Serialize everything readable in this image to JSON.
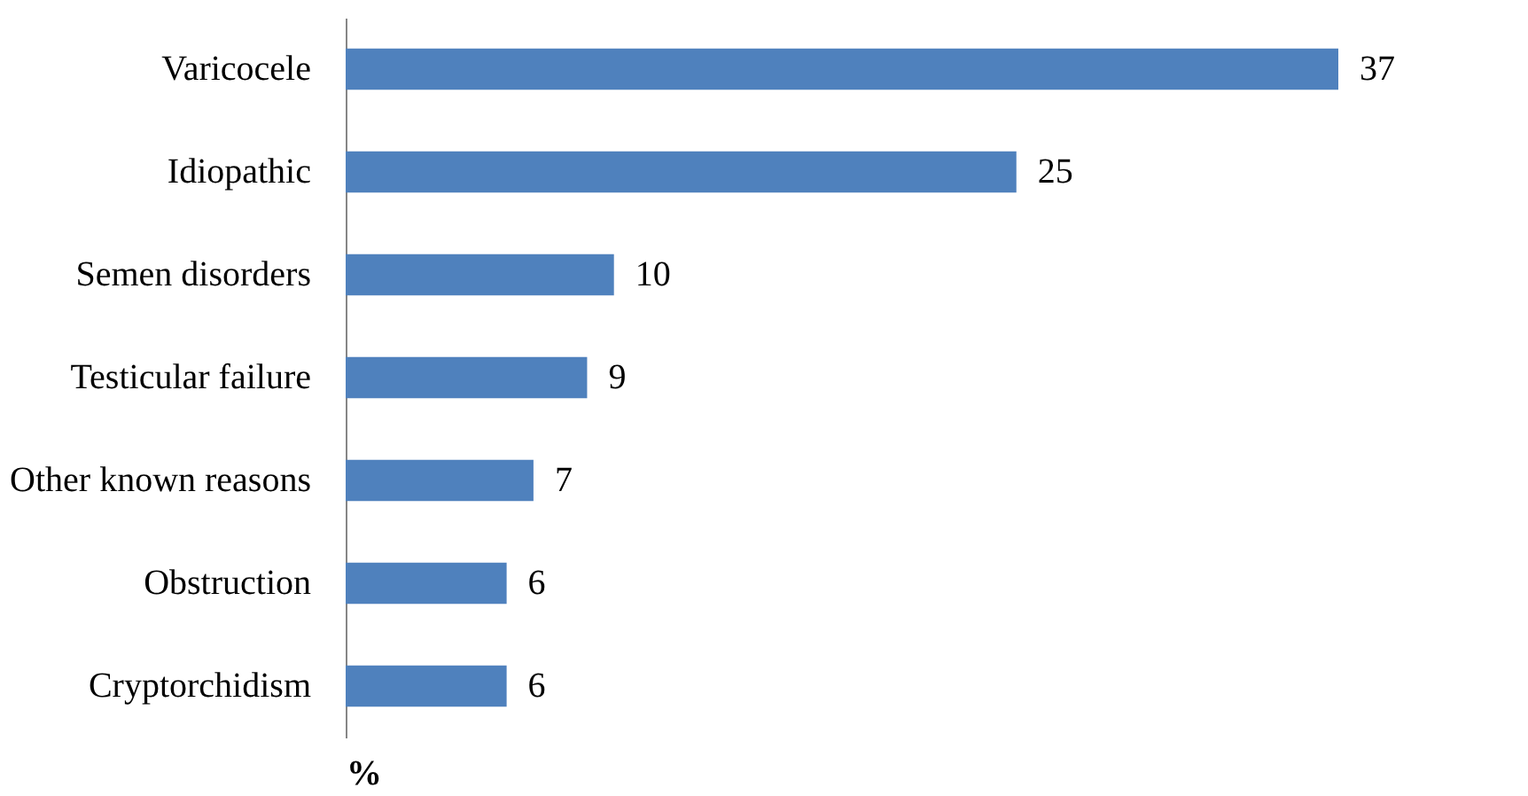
{
  "chart_data": {
    "type": "bar",
    "orientation": "horizontal",
    "xlabel": "%",
    "categories": [
      "Varicocele",
      "Idiopathic",
      "Semen disorders",
      "Testicular failure",
      "Other known reasons",
      "Obstruction",
      "Cryptorchidism"
    ],
    "values": [
      37,
      25,
      10,
      9,
      7,
      6,
      6
    ],
    "color": "#4f81bd",
    "data_labels": true,
    "tick_labels": "y",
    "grid": false
  }
}
